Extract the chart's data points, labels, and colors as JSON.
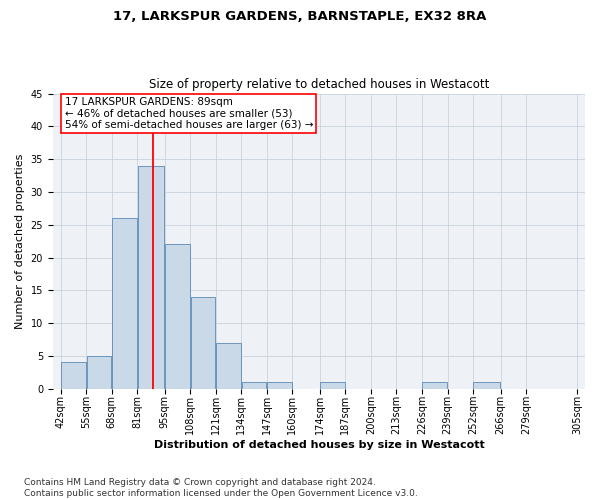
{
  "title": "17, LARKSPUR GARDENS, BARNSTAPLE, EX32 8RA",
  "subtitle": "Size of property relative to detached houses in Westacott",
  "xlabel": "Distribution of detached houses by size in Westacott",
  "ylabel": "Number of detached properties",
  "bar_values": [
    4,
    5,
    26,
    34,
    22,
    14,
    7,
    1,
    1,
    0,
    1,
    0,
    0,
    0,
    1,
    0,
    1,
    0,
    0
  ],
  "bin_edges": [
    42,
    55,
    68,
    81,
    95,
    108,
    121,
    134,
    147,
    160,
    174,
    187,
    200,
    213,
    226,
    239,
    252,
    266,
    279,
    305
  ],
  "tick_labels": [
    "42sqm",
    "55sqm",
    "68sqm",
    "81sqm",
    "95sqm",
    "108sqm",
    "121sqm",
    "134sqm",
    "147sqm",
    "160sqm",
    "174sqm",
    "187sqm",
    "200sqm",
    "213sqm",
    "226sqm",
    "239sqm",
    "252sqm",
    "266sqm",
    "279sqm",
    "305sqm"
  ],
  "property_size": 89,
  "bar_color": "#c9d9e8",
  "bar_edge_color": "#5a8ab5",
  "vline_color": "red",
  "annotation_text": "17 LARKSPUR GARDENS: 89sqm\n← 46% of detached houses are smaller (53)\n54% of semi-detached houses are larger (63) →",
  "annotation_box_color": "white",
  "annotation_box_edge_color": "red",
  "ylim": [
    0,
    45
  ],
  "yticks": [
    0,
    5,
    10,
    15,
    20,
    25,
    30,
    35,
    40,
    45
  ],
  "footer_text": "Contains HM Land Registry data © Crown copyright and database right 2024.\nContains public sector information licensed under the Open Government Licence v3.0.",
  "bg_color": "#eef2f7",
  "grid_color": "#c8d4e0",
  "title_fontsize": 9.5,
  "subtitle_fontsize": 8.5,
  "axis_label_fontsize": 8,
  "tick_fontsize": 7,
  "annotation_fontsize": 7.5,
  "footer_fontsize": 6.5
}
